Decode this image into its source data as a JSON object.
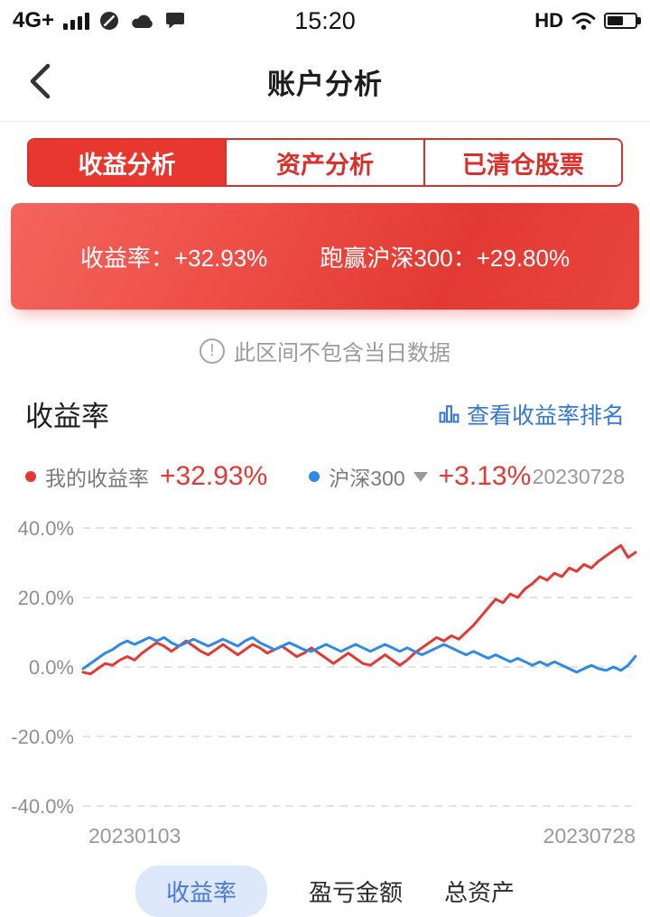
{
  "status_bar": {
    "network": "4G+",
    "time": "15:20",
    "hd": "HD"
  },
  "header": {
    "title": "账户分析"
  },
  "tabs": [
    {
      "label": "收益分析",
      "active": true
    },
    {
      "label": "资产分析",
      "active": false
    },
    {
      "label": "已清仓股票",
      "active": false
    }
  ],
  "banner": {
    "return_label": "收益率：",
    "return_value": "+32.93%",
    "outperform_label": "跑赢沪深300：",
    "outperform_value": "+29.80%"
  },
  "notice": {
    "icon_glyph": "!",
    "text": "此区间不包含当日数据"
  },
  "section": {
    "title": "收益率",
    "rank_link": "查看收益率排名"
  },
  "legend": {
    "my_label": "我的收益率",
    "my_value": "+32.93%",
    "index_label": "沪深300",
    "index_value": "+3.13%",
    "date": "20230728"
  },
  "chart_data": {
    "type": "line",
    "title": "收益率",
    "x_start_label": "20230103",
    "x_end_label": "20230728",
    "y_ticks": [
      "40.0%",
      "20.0%",
      "0.0%",
      "-20.0%",
      "-40.0%"
    ],
    "ylim": [
      -40,
      40
    ],
    "grid": "dashed",
    "series": [
      {
        "name": "我的收益率",
        "color": "#e23a33",
        "final_value": 32.93,
        "values": [
          -1.5,
          -2,
          -0.5,
          1,
          0.5,
          2,
          3,
          2,
          4,
          5.5,
          7,
          6,
          4.5,
          6,
          7.5,
          6,
          4.5,
          3.5,
          5,
          6.5,
          5,
          3.5,
          5,
          6.5,
          5.5,
          4,
          5,
          6,
          4.5,
          3,
          4,
          5.5,
          4,
          2.5,
          1,
          2.5,
          4,
          2.5,
          1,
          0.5,
          2,
          3.5,
          2,
          0.5,
          2,
          4,
          5.5,
          7,
          8.5,
          7.5,
          9,
          8,
          10,
          12,
          14.5,
          17,
          19.5,
          18.5,
          21,
          20,
          22.5,
          24,
          26,
          25,
          27,
          26,
          28.5,
          27.5,
          29.5,
          28.5,
          30.5,
          32,
          33.5,
          35,
          31.5,
          33
        ]
      },
      {
        "name": "沪深300",
        "color": "#2e8ae6",
        "final_value": 3.13,
        "values": [
          -0.5,
          1,
          2.5,
          4,
          5,
          6.5,
          7.5,
          6.5,
          7.5,
          8.5,
          7.5,
          8.5,
          7,
          6,
          7,
          8,
          7,
          6,
          7,
          8,
          7,
          6,
          7.5,
          8.5,
          7,
          6,
          5,
          6,
          7,
          6,
          5,
          4.5,
          5.5,
          6.5,
          5.5,
          4.5,
          5.5,
          6.5,
          5.5,
          4.5,
          5.5,
          6.5,
          5.5,
          4.5,
          5.5,
          4.5,
          3.5,
          4.5,
          5.5,
          6.5,
          5.5,
          4.5,
          3.5,
          4.5,
          3.5,
          2.5,
          3.5,
          2.5,
          1.5,
          2.5,
          1.5,
          0.5,
          1.5,
          0.5,
          1.5,
          0.5,
          -0.5,
          -1.5,
          -0.5,
          0.5,
          -0.5,
          -1,
          0,
          -1,
          0.5,
          3.1
        ]
      }
    ]
  },
  "bottom_tabs": [
    {
      "label": "收益率",
      "active": true
    },
    {
      "label": "盈亏金额",
      "active": false
    },
    {
      "label": "总资产",
      "active": false
    }
  ],
  "colors": {
    "accent_red": "#e23a33",
    "tab_border_red": "#d9302c",
    "link_blue": "#3577d4",
    "index_blue": "#2e8ae6",
    "pill_bg": "#dde8fa"
  }
}
